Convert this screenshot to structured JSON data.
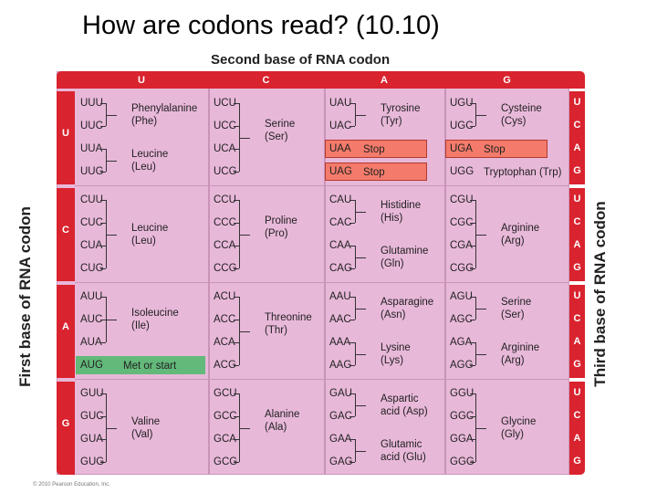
{
  "slide_title": "How are codons read? (10.10)",
  "second_base_label": "Second base of RNA codon",
  "first_base_label": "First base of RNA codon",
  "third_base_label": "Third base of RNA codon",
  "second_bases": [
    "U",
    "C",
    "A",
    "G"
  ],
  "first_bases": [
    "U",
    "C",
    "A",
    "G"
  ],
  "third_bases": [
    "U",
    "C",
    "A",
    "G"
  ],
  "copyright": "© 2010 Pearson Education, Inc.",
  "colors": {
    "header_red": "#d9232e",
    "cell_pink": "#e8b8d9",
    "stop_box": "#f47b6b",
    "start_box": "#63b97a"
  },
  "blocks": [
    [
      {
        "codons": [
          "UUU",
          "UUC",
          "UUA",
          "UUG"
        ],
        "groups": [
          {
            "rows": [
              0,
              1
            ],
            "label": "Phenylalanine\n(Phe)"
          },
          {
            "rows": [
              2,
              3
            ],
            "label": "Leucine\n(Leu)"
          }
        ]
      },
      {
        "codons": [
          "UCU",
          "UCC",
          "UCA",
          "UCG"
        ],
        "groups": [
          {
            "rows": [
              0,
              1,
              2,
              3
            ],
            "label": "Serine\n(Ser)"
          }
        ]
      },
      {
        "codons": [
          "UAU",
          "UAC",
          "UAA",
          "UAG"
        ],
        "groups": [
          {
            "rows": [
              0,
              1
            ],
            "label": "Tyrosine\n(Tyr)"
          }
        ],
        "inline": [
          {
            "row": 2,
            "text": "Stop",
            "box": "stop"
          },
          {
            "row": 3,
            "text": "Stop",
            "box": "stop"
          }
        ]
      },
      {
        "codons": [
          "UGU",
          "UGC",
          "UGA",
          "UGG"
        ],
        "groups": [
          {
            "rows": [
              0,
              1
            ],
            "label": "Cysteine\n(Cys)"
          }
        ],
        "inline": [
          {
            "row": 2,
            "text": "Stop",
            "box": "stop"
          },
          {
            "row": 3,
            "text": "Tryptophan (Trp)"
          }
        ]
      }
    ],
    [
      {
        "codons": [
          "CUU",
          "CUC",
          "CUA",
          "CUG"
        ],
        "groups": [
          {
            "rows": [
              0,
              1,
              2,
              3
            ],
            "label": "Leucine\n(Leu)"
          }
        ]
      },
      {
        "codons": [
          "CCU",
          "CCC",
          "CCA",
          "CCG"
        ],
        "groups": [
          {
            "rows": [
              0,
              1,
              2,
              3
            ],
            "label": "Proline\n(Pro)"
          }
        ]
      },
      {
        "codons": [
          "CAU",
          "CAC",
          "CAA",
          "CAG"
        ],
        "groups": [
          {
            "rows": [
              0,
              1
            ],
            "label": "Histidine\n(His)"
          },
          {
            "rows": [
              2,
              3
            ],
            "label": "Glutamine\n(Gln)"
          }
        ]
      },
      {
        "codons": [
          "CGU",
          "CGC",
          "CGA",
          "CGG"
        ],
        "groups": [
          {
            "rows": [
              0,
              1,
              2,
              3
            ],
            "label": "Arginine\n(Arg)"
          }
        ]
      }
    ],
    [
      {
        "codons": [
          "AUU",
          "AUC",
          "AUA",
          "AUG"
        ],
        "groups": [
          {
            "rows": [
              0,
              1,
              2
            ],
            "label": "Isoleucine\n(Ile)"
          }
        ],
        "inline": [
          {
            "row": 3,
            "text": "Met or start",
            "box": "start"
          }
        ]
      },
      {
        "codons": [
          "ACU",
          "ACC",
          "ACA",
          "ACG"
        ],
        "groups": [
          {
            "rows": [
              0,
              1,
              2,
              3
            ],
            "label": "Threonine\n(Thr)"
          }
        ]
      },
      {
        "codons": [
          "AAU",
          "AAC",
          "AAA",
          "AAG"
        ],
        "groups": [
          {
            "rows": [
              0,
              1
            ],
            "label": "Asparagine\n(Asn)"
          },
          {
            "rows": [
              2,
              3
            ],
            "label": "Lysine\n(Lys)"
          }
        ]
      },
      {
        "codons": [
          "AGU",
          "AGC",
          "AGA",
          "AGG"
        ],
        "groups": [
          {
            "rows": [
              0,
              1
            ],
            "label": "Serine\n(Ser)"
          },
          {
            "rows": [
              2,
              3
            ],
            "label": "Arginine\n(Arg)"
          }
        ]
      }
    ],
    [
      {
        "codons": [
          "GUU",
          "GUC",
          "GUA",
          "GUG"
        ],
        "groups": [
          {
            "rows": [
              0,
              1,
              2,
              3
            ],
            "label": "Valine\n(Val)"
          }
        ]
      },
      {
        "codons": [
          "GCU",
          "GCC",
          "GCA",
          "GCG"
        ],
        "groups": [
          {
            "rows": [
              0,
              1,
              2,
              3
            ],
            "label": "Alanine\n(Ala)"
          }
        ]
      },
      {
        "codons": [
          "GAU",
          "GAC",
          "GAA",
          "GAG"
        ],
        "groups": [
          {
            "rows": [
              0,
              1
            ],
            "label": "Aspartic\nacid (Asp)"
          },
          {
            "rows": [
              2,
              3
            ],
            "label": "Glutamic\nacid (Glu)"
          }
        ]
      },
      {
        "codons": [
          "GGU",
          "GGC",
          "GGA",
          "GGG"
        ],
        "groups": [
          {
            "rows": [
              0,
              1,
              2,
              3
            ],
            "label": "Glycine\n(Gly)"
          }
        ]
      }
    ]
  ]
}
